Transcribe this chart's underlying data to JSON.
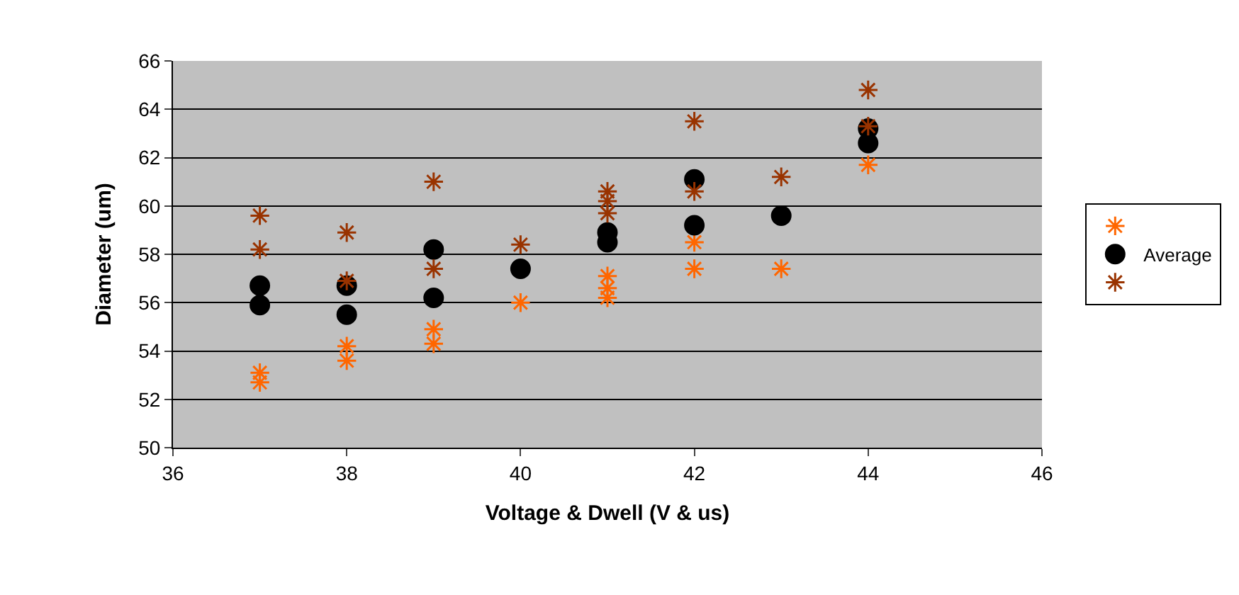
{
  "chart_data": {
    "type": "scatter",
    "xlabel": "Voltage & Dwell (V & us)",
    "ylabel": "Diameter (um)",
    "xlim": [
      36,
      46
    ],
    "xticks": [
      36,
      38,
      40,
      42,
      44,
      46
    ],
    "ylim": [
      50,
      66
    ],
    "yticks": [
      50,
      52,
      54,
      56,
      58,
      60,
      62,
      64,
      66
    ],
    "grid": "y",
    "legend": "right",
    "series": [
      {
        "color": "#ff6600",
        "marker": "cross",
        "x": [
          37,
          37,
          38,
          38,
          39,
          39,
          40,
          41,
          41,
          41,
          42,
          42,
          43,
          44
        ],
        "values": [
          53.1,
          52.7,
          54.2,
          53.6,
          54.9,
          54.3,
          56.0,
          57.1,
          56.6,
          56.2,
          58.5,
          57.4,
          57.4,
          61.7
        ]
      },
      {
        "name": "Average",
        "color": "#000000",
        "marker": "circle",
        "x": [
          37,
          37,
          38,
          38,
          39,
          39,
          40,
          41,
          41,
          42,
          42,
          43,
          44,
          44
        ],
        "values": [
          56.7,
          55.9,
          56.7,
          55.5,
          58.2,
          56.2,
          57.4,
          58.9,
          58.5,
          61.1,
          59.2,
          59.6,
          63.2,
          62.6
        ]
      },
      {
        "color": "#993300",
        "marker": "cross",
        "x": [
          37,
          37,
          38,
          38,
          39,
          39,
          40,
          41,
          41,
          41,
          42,
          42,
          43,
          44,
          44
        ],
        "values": [
          59.6,
          58.2,
          58.9,
          56.9,
          61.0,
          57.4,
          58.4,
          60.6,
          60.2,
          59.7,
          63.5,
          60.6,
          61.2,
          64.8,
          63.3
        ]
      }
    ]
  }
}
